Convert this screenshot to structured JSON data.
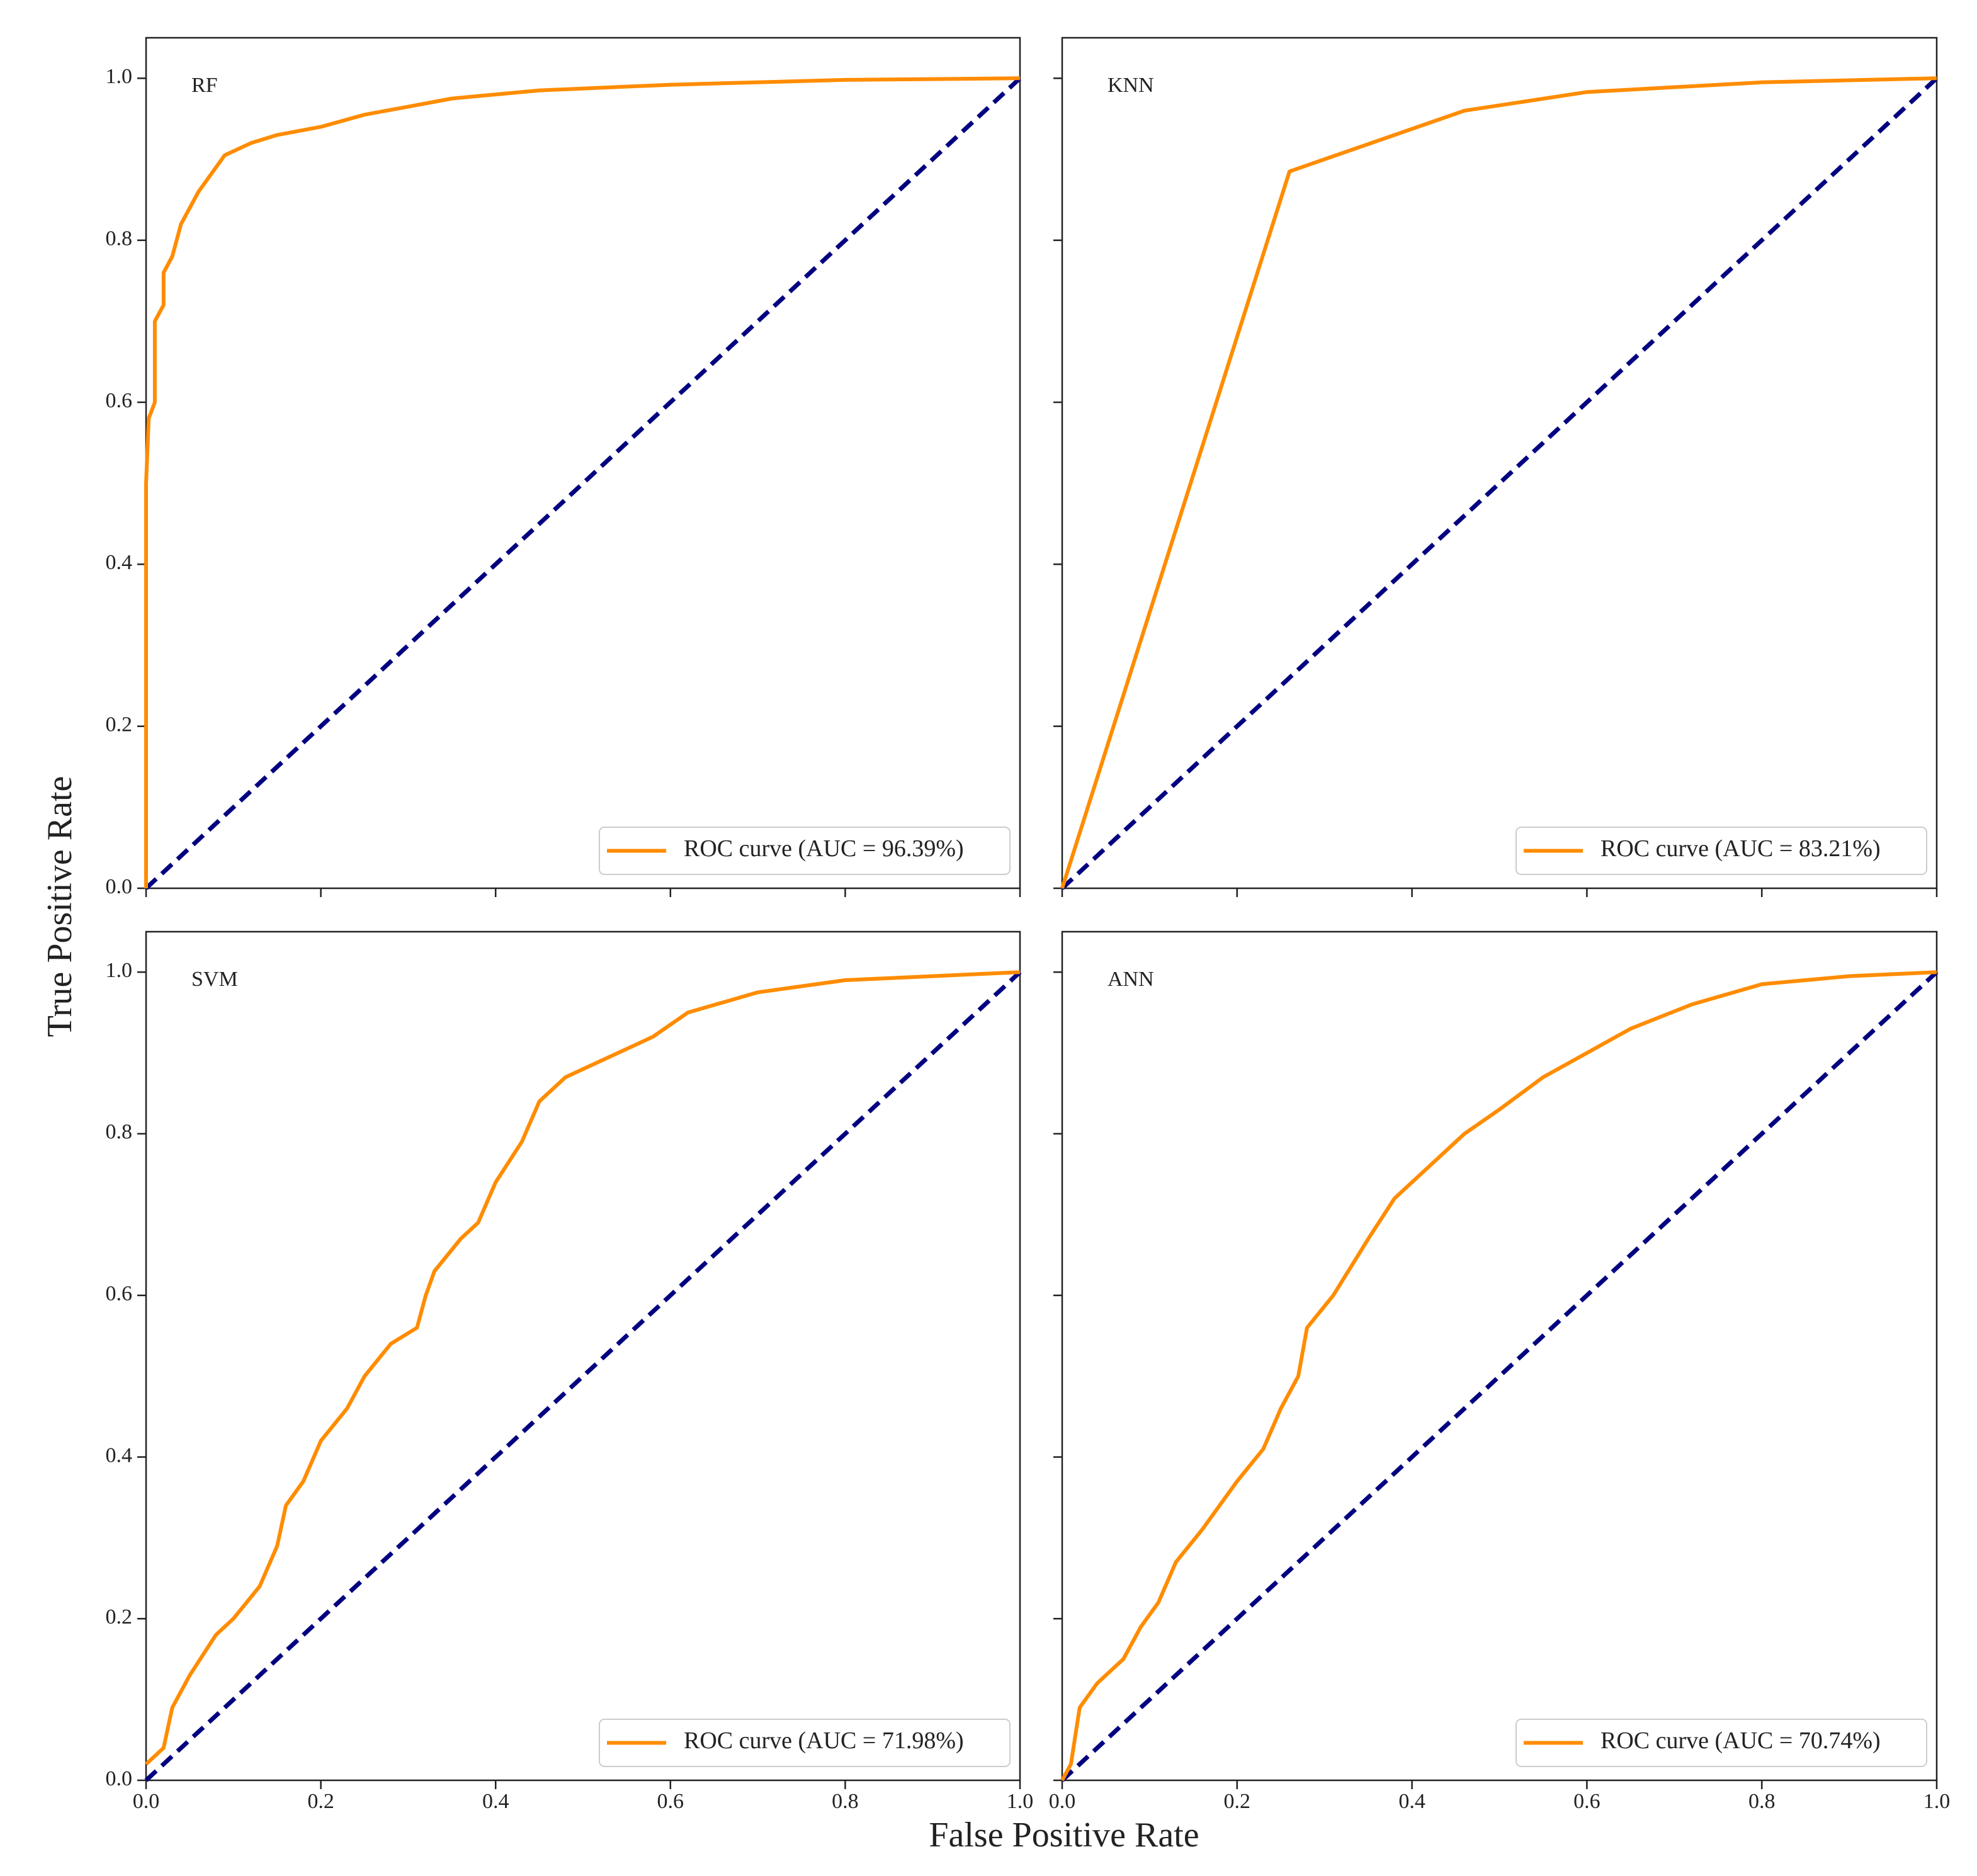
{
  "ylabel": "True Positive Rate",
  "xlabel": "False Positive Rate",
  "chart_data": [
    {
      "type": "line",
      "annotation": "RF",
      "xlim": [
        0,
        1
      ],
      "ylim": [
        0,
        1.05
      ],
      "xticks": [
        0,
        0.2,
        0.4,
        0.6,
        0.8,
        1
      ],
      "yticks": [
        {
          "value": 0,
          "label": "0.0"
        },
        {
          "value": 0.2,
          "label": "0.2"
        },
        {
          "value": 0.4,
          "label": "0.4"
        },
        {
          "value": 0.6,
          "label": "0.6"
        },
        {
          "value": 0.8,
          "label": "0.8"
        },
        {
          "value": 1,
          "label": "1.0"
        }
      ],
      "legend": "lower right",
      "series": [
        {
          "name": "ROC curve (AUC = 96.39%)",
          "color": "#ff8c00",
          "x": [
            0,
            0,
            0.003,
            0.01,
            0.01,
            0.02,
            0.02,
            0.03,
            0.04,
            0.05,
            0.06,
            0.08,
            0.09,
            0.12,
            0.15,
            0.2,
            0.25,
            0.3,
            0.35,
            0.45,
            0.6,
            0.8,
            1
          ],
          "values": [
            0,
            0.5,
            0.58,
            0.6,
            0.7,
            0.72,
            0.76,
            0.78,
            0.82,
            0.84,
            0.86,
            0.89,
            0.905,
            0.92,
            0.93,
            0.94,
            0.955,
            0.965,
            0.975,
            0.985,
            0.992,
            0.998,
            1
          ]
        }
      ],
      "reference_line": {
        "x": [
          0,
          1
        ],
        "values": [
          0,
          1
        ],
        "color": "#000080",
        "dashed": true
      }
    },
    {
      "type": "line",
      "annotation": "KNN",
      "xlim": [
        0,
        1
      ],
      "ylim": [
        0,
        1.05
      ],
      "xticks": [
        0,
        0.2,
        0.4,
        0.6,
        0.8,
        1
      ],
      "yticks": [
        0,
        0.2,
        0.4,
        0.6,
        0.8,
        1
      ],
      "legend": "lower right",
      "series": [
        {
          "name": "ROC curve (AUC = 83.21%)",
          "color": "#ff8c00",
          "x": [
            0,
            0.26,
            0.46,
            0.6,
            0.8,
            1
          ],
          "values": [
            0,
            0.885,
            0.96,
            0.983,
            0.995,
            1
          ]
        }
      ],
      "reference_line": {
        "x": [
          0,
          1
        ],
        "values": [
          0,
          1
        ],
        "color": "#000080",
        "dashed": true
      }
    },
    {
      "type": "line",
      "annotation": "SVM",
      "xlim": [
        0,
        1
      ],
      "ylim": [
        0,
        1.05
      ],
      "xticks": [
        {
          "value": 0,
          "label": "0.0"
        },
        {
          "value": 0.2,
          "label": "0.2"
        },
        {
          "value": 0.4,
          "label": "0.4"
        },
        {
          "value": 0.6,
          "label": "0.6"
        },
        {
          "value": 0.8,
          "label": "0.8"
        },
        {
          "value": 1,
          "label": "1.0"
        }
      ],
      "yticks": [
        {
          "value": 0,
          "label": "0.0"
        },
        {
          "value": 0.2,
          "label": "0.2"
        },
        {
          "value": 0.4,
          "label": "0.4"
        },
        {
          "value": 0.6,
          "label": "0.6"
        },
        {
          "value": 0.8,
          "label": "0.8"
        },
        {
          "value": 1,
          "label": "1.0"
        }
      ],
      "legend": "lower right",
      "series": [
        {
          "name": "ROC curve (AUC = 71.98%)",
          "color": "#ff8c00",
          "x": [
            0,
            0.02,
            0.03,
            0.05,
            0.08,
            0.1,
            0.13,
            0.15,
            0.16,
            0.18,
            0.2,
            0.23,
            0.25,
            0.28,
            0.31,
            0.32,
            0.33,
            0.36,
            0.38,
            0.4,
            0.43,
            0.45,
            0.48,
            0.52,
            0.58,
            0.62,
            0.7,
            0.8,
            0.9,
            1
          ],
          "values": [
            0.02,
            0.04,
            0.09,
            0.13,
            0.18,
            0.2,
            0.24,
            0.29,
            0.34,
            0.37,
            0.42,
            0.46,
            0.5,
            0.54,
            0.56,
            0.6,
            0.63,
            0.67,
            0.69,
            0.74,
            0.79,
            0.84,
            0.87,
            0.89,
            0.92,
            0.95,
            0.975,
            0.99,
            0.995,
            1
          ]
        }
      ],
      "reference_line": {
        "x": [
          0,
          1
        ],
        "values": [
          0,
          1
        ],
        "color": "#000080",
        "dashed": true
      }
    },
    {
      "type": "line",
      "annotation": "ANN",
      "xlim": [
        0,
        1
      ],
      "ylim": [
        0,
        1.05
      ],
      "xticks": [
        {
          "value": 0,
          "label": "0.0"
        },
        {
          "value": 0.2,
          "label": "0.2"
        },
        {
          "value": 0.4,
          "label": "0.4"
        },
        {
          "value": 0.6,
          "label": "0.6"
        },
        {
          "value": 0.8,
          "label": "0.8"
        },
        {
          "value": 1,
          "label": "1.0"
        }
      ],
      "yticks": [
        0,
        0.2,
        0.4,
        0.6,
        0.8,
        1
      ],
      "legend": "lower right",
      "series": [
        {
          "name": "ROC curve (AUC = 70.74%)",
          "color": "#ff8c00",
          "x": [
            0,
            0.01,
            0.02,
            0.04,
            0.07,
            0.09,
            0.11,
            0.13,
            0.16,
            0.18,
            0.2,
            0.23,
            0.25,
            0.27,
            0.28,
            0.31,
            0.35,
            0.38,
            0.42,
            0.46,
            0.5,
            0.55,
            0.6,
            0.65,
            0.72,
            0.8,
            0.9,
            1
          ],
          "values": [
            0,
            0.02,
            0.09,
            0.12,
            0.15,
            0.19,
            0.22,
            0.27,
            0.31,
            0.34,
            0.37,
            0.41,
            0.46,
            0.5,
            0.56,
            0.6,
            0.67,
            0.72,
            0.76,
            0.8,
            0.83,
            0.87,
            0.9,
            0.93,
            0.96,
            0.985,
            0.995,
            1
          ]
        }
      ],
      "reference_line": {
        "x": [
          0,
          1
        ],
        "values": [
          0,
          1
        ],
        "color": "#000080",
        "dashed": true
      }
    }
  ]
}
